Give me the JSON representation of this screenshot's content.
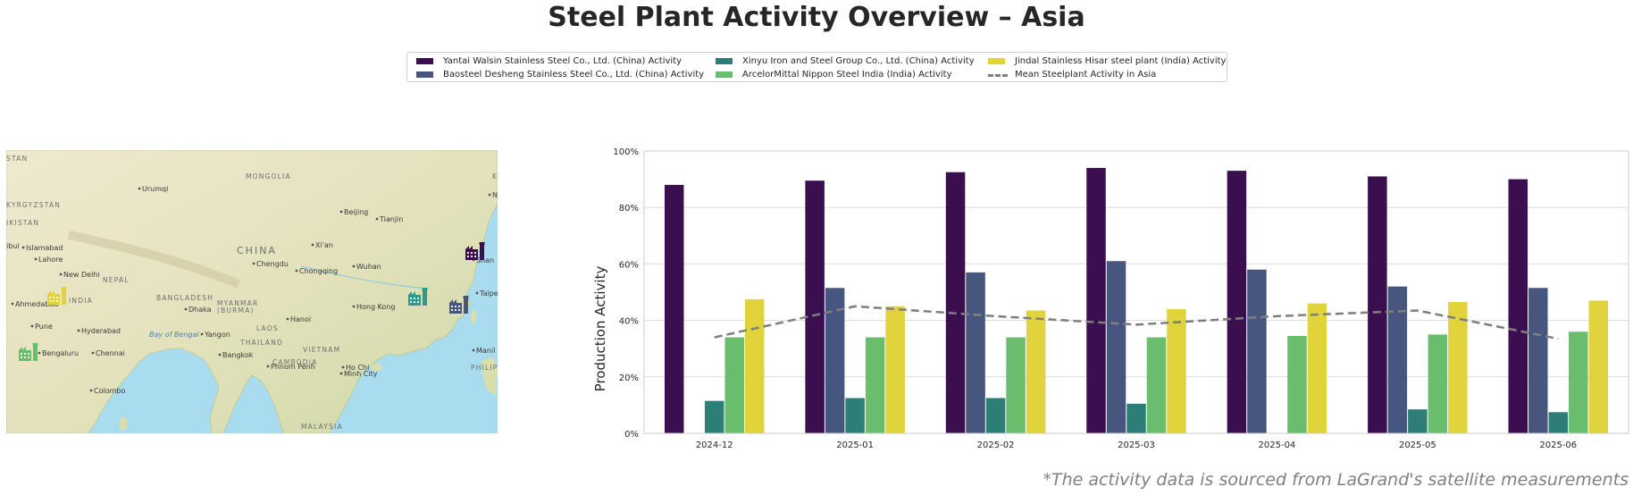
{
  "title": "Steel Plant Activity Overview – Asia",
  "footnote": "*The activity data is sourced from LaGrand's satellite measurements",
  "legend": [
    {
      "label": "Yantai Walsin Stainless Steel Co., Ltd. (China) Activity",
      "color": "#3b0f4f",
      "kind": "bar"
    },
    {
      "label": "Baosteel Desheng Stainless Steel Co., Ltd. (China) Activity",
      "color": "#46567f",
      "kind": "bar"
    },
    {
      "label": "Xinyu Iron and Steel Group Co., Ltd. (China) Activity",
      "color": "#2e7e78",
      "kind": "bar"
    },
    {
      "label": "ArcelorMittal Nippon Steel India (India) Activity",
      "color": "#6bbd6e",
      "kind": "bar"
    },
    {
      "label": "Jindal Stainless Hisar steel plant (India) Activity",
      "color": "#e0d33c",
      "kind": "bar"
    },
    {
      "label": "Mean Steelplant Activity in Asia",
      "color": "#7f7f7f",
      "kind": "line"
    }
  ],
  "map": {
    "labels": [
      {
        "text": "STAN",
        "cls": "country"
      },
      {
        "text": "MONGOLIA",
        "cls": "country"
      },
      {
        "text": "Urumqi",
        "cls": "city"
      },
      {
        "text": "KYRGYZSTAN",
        "cls": "country"
      },
      {
        "text": "IKISTAN",
        "cls": "country"
      },
      {
        "text": "Beijing",
        "cls": "city"
      },
      {
        "text": "Tianjin",
        "cls": "city"
      },
      {
        "text": "Islamabad",
        "cls": "city"
      },
      {
        "text": "Lahore",
        "cls": "city"
      },
      {
        "text": "New Delhi",
        "cls": "city"
      },
      {
        "text": "NEPAL",
        "cls": "country"
      },
      {
        "text": "CHINA",
        "cls": "big"
      },
      {
        "text": "Xi'an",
        "cls": "city"
      },
      {
        "text": "Chengdu",
        "cls": "city"
      },
      {
        "text": "Chongqing",
        "cls": "city"
      },
      {
        "text": "Wuhan",
        "cls": "city"
      },
      {
        "text": "Shan",
        "cls": "city"
      },
      {
        "text": "Taipe",
        "cls": "city"
      },
      {
        "text": "BANGLADESH",
        "cls": "country"
      },
      {
        "text": "MYANMAR",
        "cls": "country"
      },
      {
        "text": "(BURMA)",
        "cls": "country"
      },
      {
        "text": "Dhaka",
        "cls": "city"
      },
      {
        "text": "Ahmedabad",
        "cls": "city"
      },
      {
        "text": "INDIA",
        "cls": "country"
      },
      {
        "text": "Hanoi",
        "cls": "city"
      },
      {
        "text": "Hong Kong",
        "cls": "city"
      },
      {
        "text": "LAOS",
        "cls": "country"
      },
      {
        "text": "Pune",
        "cls": "city"
      },
      {
        "text": "Hyderabad",
        "cls": "city"
      },
      {
        "text": "Bay of Bengal",
        "cls": "water"
      },
      {
        "text": "Yangon",
        "cls": "city"
      },
      {
        "text": "THAILAND",
        "cls": "country"
      },
      {
        "text": "VIETNAM",
        "cls": "country"
      },
      {
        "text": "Bengaluru",
        "cls": "city"
      },
      {
        "text": "Chennai",
        "cls": "city"
      },
      {
        "text": "Bangkok",
        "cls": "city"
      },
      {
        "text": "CAMBODIA",
        "cls": "country"
      },
      {
        "text": "Phnom Penh",
        "cls": "city"
      },
      {
        "text": "Ho Chi",
        "cls": "city"
      },
      {
        "text": "Minh City",
        "cls": "city"
      },
      {
        "text": "Manil",
        "cls": "city"
      },
      {
        "text": "PHILIPP",
        "cls": "country"
      },
      {
        "text": "Colombo",
        "cls": "city"
      },
      {
        "text": "ibul",
        "cls": "city"
      },
      {
        "text": "N",
        "cls": "city"
      },
      {
        "text": "KO",
        "cls": "country"
      },
      {
        "text": "MALAYSIA",
        "cls": "country"
      }
    ],
    "markers": [
      {
        "plant": "Yantai Walsin Stainless Steel Co., Ltd. (China)",
        "color": "#3b0f4f",
        "icon": "factory-icon"
      },
      {
        "plant": "Baosteel Desheng Stainless Steel Co., Ltd. (China)",
        "color": "#46567f",
        "icon": "factory-icon"
      },
      {
        "plant": "Xinyu Iron and Steel Group Co., Ltd. (China)",
        "color": "#2e9a8a",
        "icon": "factory-icon"
      },
      {
        "plant": "ArcelorMittal Nippon Steel India (India)",
        "color": "#6bbd6e",
        "icon": "factory-icon"
      },
      {
        "plant": "Jindal Stainless Hisar steel plant (India)",
        "color": "#e0d33c",
        "icon": "factory-icon"
      }
    ]
  },
  "chart_data": {
    "type": "bar",
    "title": "",
    "xlabel": "",
    "ylabel": "Production Activity",
    "ylim": [
      0,
      100
    ],
    "yticks": [
      "0%",
      "20%",
      "40%",
      "60%",
      "80%",
      "100%"
    ],
    "grid": true,
    "categories": [
      "2024-12",
      "2025-01",
      "2025-02",
      "2025-03",
      "2025-04",
      "2025-05",
      "2025-06"
    ],
    "series": [
      {
        "name": "Yantai Walsin Stainless Steel Co., Ltd. (China) Activity",
        "color": "#3b0f4f",
        "values": [
          88,
          89.5,
          92.5,
          94,
          93,
          91,
          90
        ]
      },
      {
        "name": "Baosteel Desheng Stainless Steel Co., Ltd. (China) Activity",
        "color": "#46567f",
        "values": [
          null,
          51.5,
          57,
          61,
          58,
          52,
          51.5
        ]
      },
      {
        "name": "Xinyu Iron and Steel Group Co., Ltd. (China) Activity",
        "color": "#2e7e78",
        "values": [
          11.5,
          12.5,
          12.5,
          10.5,
          null,
          8.5,
          7.5
        ]
      },
      {
        "name": "ArcelorMittal Nippon Steel India (India) Activity",
        "color": "#6bbd6e",
        "values": [
          34,
          34,
          34,
          34,
          34.5,
          35,
          36
        ]
      },
      {
        "name": "Jindal Stainless Hisar steel plant (India) Activity",
        "color": "#e0d33c",
        "values": [
          47.5,
          45,
          43.5,
          44,
          46,
          46.5,
          47
        ]
      }
    ],
    "mean_line": {
      "name": "Mean Steelplant Activity in Asia",
      "color": "#7f7f7f",
      "values": [
        34,
        45,
        41.5,
        38.5,
        41.5,
        43.5,
        33.5
      ]
    }
  }
}
